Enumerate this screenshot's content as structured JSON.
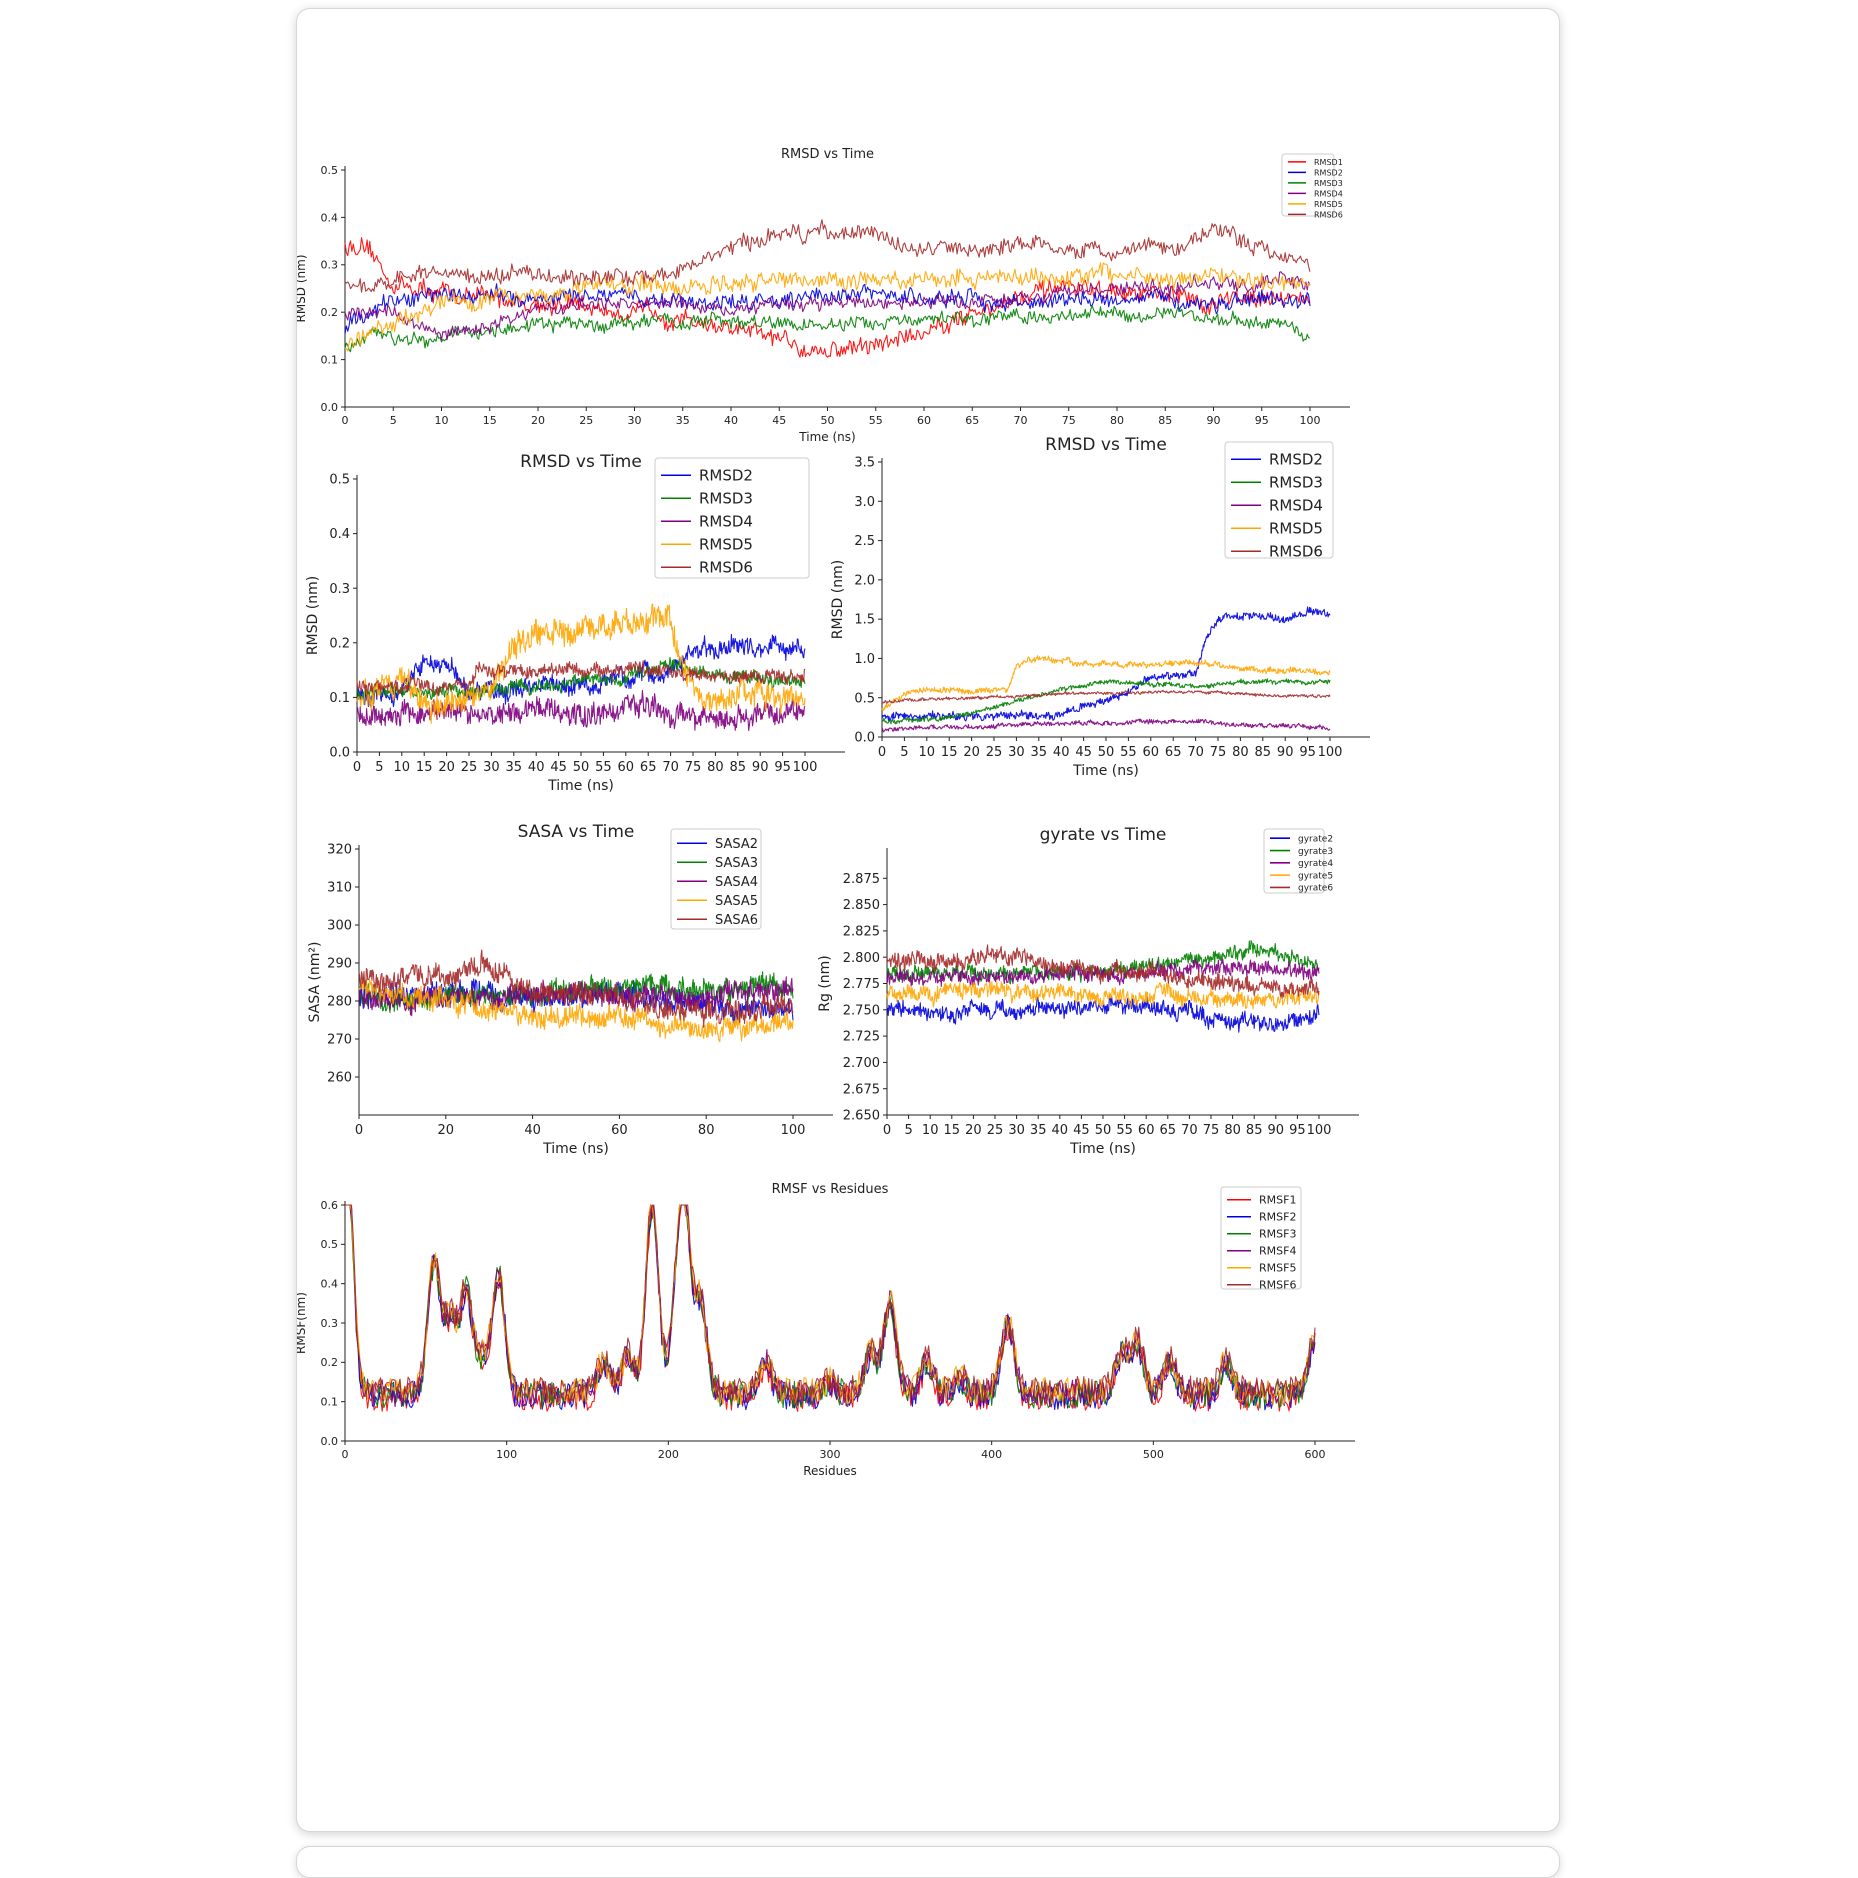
{
  "colors": {
    "c1": "#ff0000",
    "c2": "#0000dd",
    "c3": "#008000",
    "c4": "#800080",
    "c5": "#ffa500",
    "c6": "#a52a2a"
  },
  "chart_data": [
    {
      "id": "rmsd-all",
      "type": "line",
      "title": "RMSD vs Time",
      "xlabel": "Time (ns)",
      "ylabel": "RMSD (nm)",
      "xlim": [
        0,
        100
      ],
      "ylim": [
        0,
        0.5
      ],
      "xticks": [
        0,
        5,
        10,
        15,
        20,
        25,
        30,
        35,
        40,
        45,
        50,
        55,
        60,
        65,
        70,
        75,
        80,
        85,
        90,
        95,
        100
      ],
      "yticks": [
        0.0,
        0.1,
        0.2,
        0.3,
        0.4,
        0.5
      ],
      "ytick_decimals": 1,
      "legend": "top-right",
      "legend_size": "small",
      "series": [
        {
          "name": "RMSD1",
          "color": "#ff0000",
          "x": [
            0,
            2,
            5,
            10,
            15,
            20,
            25,
            30,
            35,
            40,
            45,
            50,
            55,
            60,
            65,
            70,
            75,
            80,
            85,
            90,
            95,
            100
          ],
          "y": [
            0.34,
            0.33,
            0.26,
            0.24,
            0.23,
            0.22,
            0.21,
            0.2,
            0.19,
            0.16,
            0.14,
            0.12,
            0.13,
            0.16,
            0.2,
            0.23,
            0.25,
            0.24,
            0.23,
            0.22,
            0.24,
            0.23
          ],
          "noise": 0.02
        },
        {
          "name": "RMSD2",
          "color": "#0000dd",
          "x": [
            0,
            5,
            10,
            20,
            30,
            40,
            50,
            60,
            70,
            80,
            90,
            100
          ],
          "y": [
            0.17,
            0.22,
            0.24,
            0.23,
            0.23,
            0.22,
            0.24,
            0.23,
            0.22,
            0.23,
            0.22,
            0.22
          ],
          "noise": 0.018
        },
        {
          "name": "RMSD3",
          "color": "#008000",
          "x": [
            0,
            3,
            10,
            20,
            30,
            40,
            50,
            60,
            70,
            80,
            90,
            98,
            100
          ],
          "y": [
            0.12,
            0.15,
            0.15,
            0.17,
            0.18,
            0.18,
            0.17,
            0.18,
            0.19,
            0.2,
            0.19,
            0.17,
            0.15
          ],
          "noise": 0.015
        },
        {
          "name": "RMSD4",
          "color": "#800080",
          "x": [
            0,
            5,
            10,
            15,
            20,
            30,
            40,
            50,
            60,
            70,
            80,
            90,
            100
          ],
          "y": [
            0.19,
            0.2,
            0.15,
            0.17,
            0.21,
            0.22,
            0.21,
            0.22,
            0.22,
            0.23,
            0.25,
            0.26,
            0.26
          ],
          "noise": 0.015
        },
        {
          "name": "RMSD5",
          "color": "#ffa500",
          "x": [
            0,
            5,
            10,
            20,
            30,
            40,
            50,
            60,
            70,
            80,
            90,
            100
          ],
          "y": [
            0.13,
            0.18,
            0.22,
            0.24,
            0.26,
            0.26,
            0.27,
            0.27,
            0.27,
            0.28,
            0.27,
            0.27
          ],
          "noise": 0.02
        },
        {
          "name": "RMSD6",
          "color": "#a52a2a",
          "x": [
            0,
            5,
            10,
            20,
            30,
            35,
            40,
            45,
            50,
            55,
            60,
            65,
            70,
            75,
            80,
            85,
            90,
            95,
            100
          ],
          "y": [
            0.26,
            0.27,
            0.28,
            0.28,
            0.27,
            0.29,
            0.33,
            0.36,
            0.37,
            0.36,
            0.33,
            0.33,
            0.35,
            0.33,
            0.33,
            0.34,
            0.37,
            0.34,
            0.31
          ],
          "noise": 0.018
        }
      ]
    },
    {
      "id": "rmsd-b",
      "type": "line",
      "title": "RMSD vs Time",
      "xlabel": "Time (ns)",
      "ylabel": "RMSD (nm)",
      "xlim": [
        0,
        100
      ],
      "ylim": [
        0,
        0.5
      ],
      "xticks": [
        0,
        5,
        10,
        15,
        20,
        25,
        30,
        35,
        40,
        45,
        50,
        55,
        60,
        65,
        70,
        75,
        80,
        85,
        90,
        95,
        100
      ],
      "yticks": [
        0.0,
        0.1,
        0.2,
        0.3,
        0.4,
        0.5
      ],
      "ytick_decimals": 1,
      "legend": "top-right",
      "legend_size": "large",
      "series": [
        {
          "name": "RMSD2",
          "color": "#0000dd",
          "x": [
            0,
            10,
            15,
            20,
            25,
            30,
            40,
            50,
            60,
            70,
            75,
            80,
            90,
            100
          ],
          "y": [
            0.1,
            0.11,
            0.16,
            0.16,
            0.11,
            0.11,
            0.12,
            0.12,
            0.13,
            0.15,
            0.19,
            0.19,
            0.19,
            0.19
          ],
          "noise": 0.018
        },
        {
          "name": "RMSD3",
          "color": "#008000",
          "x": [
            0,
            20,
            40,
            60,
            70,
            80,
            100
          ],
          "y": [
            0.11,
            0.11,
            0.12,
            0.14,
            0.16,
            0.14,
            0.13
          ],
          "noise": 0.012
        },
        {
          "name": "RMSD4",
          "color": "#800080",
          "x": [
            0,
            10,
            20,
            30,
            40,
            50,
            60,
            70,
            80,
            90,
            100
          ],
          "y": [
            0.07,
            0.07,
            0.07,
            0.07,
            0.08,
            0.07,
            0.08,
            0.07,
            0.06,
            0.07,
            0.08
          ],
          "noise": 0.02
        },
        {
          "name": "RMSD5",
          "color": "#ffa500",
          "x": [
            0,
            10,
            15,
            20,
            25,
            30,
            32,
            40,
            50,
            60,
            65,
            70,
            75,
            80,
            90,
            100
          ],
          "y": [
            0.09,
            0.14,
            0.09,
            0.09,
            0.1,
            0.12,
            0.17,
            0.22,
            0.22,
            0.23,
            0.25,
            0.24,
            0.11,
            0.1,
            0.1,
            0.09
          ],
          "noise": 0.025
        },
        {
          "name": "RMSD6",
          "color": "#a52a2a",
          "x": [
            0,
            10,
            20,
            25,
            27,
            30,
            40,
            50,
            60,
            70,
            80,
            90,
            100
          ],
          "y": [
            0.12,
            0.12,
            0.12,
            0.12,
            0.15,
            0.15,
            0.15,
            0.15,
            0.15,
            0.15,
            0.14,
            0.14,
            0.14
          ],
          "noise": 0.012
        }
      ]
    },
    {
      "id": "rmsd-c",
      "type": "line",
      "title": "RMSD vs Time",
      "xlabel": "Time (ns)",
      "ylabel": "RMSD (nm)",
      "xlim": [
        0,
        100
      ],
      "ylim": [
        0,
        3.5
      ],
      "xticks": [
        0,
        5,
        10,
        15,
        20,
        25,
        30,
        35,
        40,
        45,
        50,
        55,
        60,
        65,
        70,
        75,
        80,
        85,
        90,
        95,
        100
      ],
      "yticks": [
        0.0,
        0.5,
        1.0,
        1.5,
        2.0,
        2.5,
        3.0,
        3.5
      ],
      "ytick_decimals": 1,
      "legend": "top-right",
      "legend_size": "large",
      "series": [
        {
          "name": "RMSD2",
          "color": "#0000dd",
          "x": [
            0,
            10,
            20,
            30,
            40,
            45,
            50,
            60,
            70,
            72,
            75,
            80,
            90,
            95,
            100
          ],
          "y": [
            0.25,
            0.25,
            0.27,
            0.27,
            0.3,
            0.4,
            0.45,
            0.75,
            0.8,
            1.2,
            1.5,
            1.55,
            1.5,
            1.6,
            1.55
          ],
          "noise": 0.05
        },
        {
          "name": "RMSD3",
          "color": "#008000",
          "x": [
            0,
            10,
            20,
            30,
            40,
            50,
            60,
            70,
            80,
            90,
            100
          ],
          "y": [
            0.2,
            0.22,
            0.3,
            0.45,
            0.6,
            0.7,
            0.68,
            0.65,
            0.7,
            0.7,
            0.7
          ],
          "noise": 0.03
        },
        {
          "name": "RMSD4",
          "color": "#800080",
          "x": [
            0,
            10,
            20,
            30,
            40,
            50,
            60,
            70,
            80,
            90,
            100
          ],
          "y": [
            0.1,
            0.12,
            0.13,
            0.15,
            0.18,
            0.17,
            0.2,
            0.2,
            0.15,
            0.14,
            0.12
          ],
          "noise": 0.03
        },
        {
          "name": "RMSD5",
          "color": "#ffa500",
          "x": [
            0,
            5,
            10,
            20,
            28,
            30,
            33,
            40,
            50,
            60,
            70,
            80,
            90,
            100
          ],
          "y": [
            0.35,
            0.55,
            0.6,
            0.6,
            0.6,
            0.9,
            1.0,
            0.95,
            0.92,
            0.92,
            0.95,
            0.88,
            0.85,
            0.82
          ],
          "noise": 0.04
        },
        {
          "name": "RMSD6",
          "color": "#a52a2a",
          "x": [
            0,
            10,
            20,
            30,
            40,
            50,
            60,
            70,
            80,
            90,
            100
          ],
          "y": [
            0.45,
            0.48,
            0.5,
            0.52,
            0.55,
            0.56,
            0.57,
            0.58,
            0.55,
            0.52,
            0.52
          ],
          "noise": 0.02
        }
      ]
    },
    {
      "id": "sasa",
      "type": "line",
      "title": "SASA vs Time",
      "xlabel": "Time (ns)",
      "ylabel": "SASA (nm²)",
      "xlim": [
        0,
        100
      ],
      "ylim": [
        250,
        320
      ],
      "xticks": [
        0,
        20,
        40,
        60,
        80,
        100
      ],
      "yticks": [
        260,
        270,
        280,
        290,
        300,
        310,
        320
      ],
      "ytick_decimals": 0,
      "legend": "top-right",
      "legend_size": "large",
      "series": [
        {
          "name": "SASA2",
          "color": "#0000dd",
          "x": [
            0,
            20,
            40,
            60,
            80,
            100
          ],
          "y": [
            281,
            282,
            281,
            282,
            279,
            278
          ],
          "noise": 3
        },
        {
          "name": "SASA3",
          "color": "#008000",
          "x": [
            0,
            20,
            40,
            60,
            80,
            100
          ],
          "y": [
            280,
            281,
            282,
            283,
            283,
            284
          ],
          "noise": 3
        },
        {
          "name": "SASA4",
          "color": "#800080",
          "x": [
            0,
            20,
            40,
            60,
            80,
            100
          ],
          "y": [
            280,
            281,
            282,
            281,
            281,
            284
          ],
          "noise": 3
        },
        {
          "name": "SASA5",
          "color": "#ffa500",
          "x": [
            0,
            20,
            40,
            60,
            80,
            100
          ],
          "y": [
            283,
            280,
            276,
            276,
            272,
            275
          ],
          "noise": 3
        },
        {
          "name": "SASA6",
          "color": "#a52a2a",
          "x": [
            0,
            20,
            28,
            40,
            60,
            80,
            100
          ],
          "y": [
            286,
            286,
            290,
            283,
            281,
            277,
            279
          ],
          "noise": 3
        }
      ]
    },
    {
      "id": "gyrate",
      "type": "line",
      "title": "gyrate vs Time",
      "xlabel": "Time (ns)",
      "ylabel": "Rg (nm)",
      "xlim": [
        0,
        100
      ],
      "ylim": [
        2.65,
        2.9
      ],
      "xticks": [
        0,
        5,
        10,
        15,
        20,
        25,
        30,
        35,
        40,
        45,
        50,
        55,
        60,
        65,
        70,
        75,
        80,
        85,
        90,
        95,
        100
      ],
      "yticks": [
        2.65,
        2.675,
        2.7,
        2.725,
        2.75,
        2.775,
        2.8,
        2.825,
        2.85,
        2.875
      ],
      "ytick_decimals": 3,
      "legend": "top-right",
      "legend_size": "small",
      "series": [
        {
          "name": "gyrate2",
          "color": "#0000dd",
          "x": [
            0,
            20,
            40,
            60,
            80,
            90,
            100
          ],
          "y": [
            2.75,
            2.748,
            2.752,
            2.755,
            2.74,
            2.735,
            2.745
          ],
          "noise": 0.008
        },
        {
          "name": "gyrate3",
          "color": "#008000",
          "x": [
            0,
            20,
            40,
            60,
            75,
            85,
            95,
            100
          ],
          "y": [
            2.785,
            2.785,
            2.785,
            2.79,
            2.8,
            2.81,
            2.8,
            2.79
          ],
          "noise": 0.007
        },
        {
          "name": "gyrate4",
          "color": "#800080",
          "x": [
            0,
            20,
            40,
            60,
            80,
            100
          ],
          "y": [
            2.78,
            2.78,
            2.785,
            2.785,
            2.79,
            2.785
          ],
          "noise": 0.007
        },
        {
          "name": "gyrate5",
          "color": "#ffa500",
          "x": [
            0,
            20,
            40,
            60,
            80,
            100
          ],
          "y": [
            2.765,
            2.77,
            2.765,
            2.765,
            2.76,
            2.76
          ],
          "noise": 0.008
        },
        {
          "name": "gyrate6",
          "color": "#a52a2a",
          "x": [
            0,
            20,
            25,
            40,
            60,
            80,
            100
          ],
          "y": [
            2.795,
            2.795,
            2.805,
            2.79,
            2.785,
            2.775,
            2.77
          ],
          "noise": 0.008
        }
      ]
    },
    {
      "id": "rmsf",
      "type": "line",
      "title": "RMSF vs Residues",
      "xlabel": "Residues",
      "ylabel": "RMSF(nm)",
      "xlim": [
        0,
        600
      ],
      "ylim": [
        0,
        0.6
      ],
      "xticks": [
        0,
        100,
        200,
        300,
        400,
        500,
        600
      ],
      "yticks": [
        0.0,
        0.1,
        0.2,
        0.3,
        0.4,
        0.5,
        0.6
      ],
      "ytick_decimals": 1,
      "legend": "top-right",
      "legend_size": "medium",
      "baseline": 0.12,
      "peaks": [
        [
          0,
          0.58
        ],
        [
          2,
          0.35
        ],
        [
          55,
          0.45
        ],
        [
          65,
          0.3
        ],
        [
          75,
          0.38
        ],
        [
          85,
          0.2
        ],
        [
          95,
          0.42
        ],
        [
          160,
          0.2
        ],
        [
          175,
          0.22
        ],
        [
          190,
          0.6
        ],
        [
          205,
          0.3
        ],
        [
          210,
          0.55
        ],
        [
          220,
          0.35
        ],
        [
          260,
          0.2
        ],
        [
          300,
          0.15
        ],
        [
          325,
          0.22
        ],
        [
          337,
          0.35
        ],
        [
          360,
          0.2
        ],
        [
          380,
          0.16
        ],
        [
          410,
          0.3
        ],
        [
          480,
          0.22
        ],
        [
          490,
          0.25
        ],
        [
          510,
          0.2
        ],
        [
          545,
          0.2
        ],
        [
          600,
          0.26
        ]
      ],
      "series": [
        {
          "name": "RMSF1",
          "color": "#ff0000"
        },
        {
          "name": "RMSF2",
          "color": "#0000dd"
        },
        {
          "name": "RMSF3",
          "color": "#008000"
        },
        {
          "name": "RMSF4",
          "color": "#800080"
        },
        {
          "name": "RMSF5",
          "color": "#ffa500"
        },
        {
          "name": "RMSF6",
          "color": "#a52a2a"
        }
      ]
    }
  ]
}
